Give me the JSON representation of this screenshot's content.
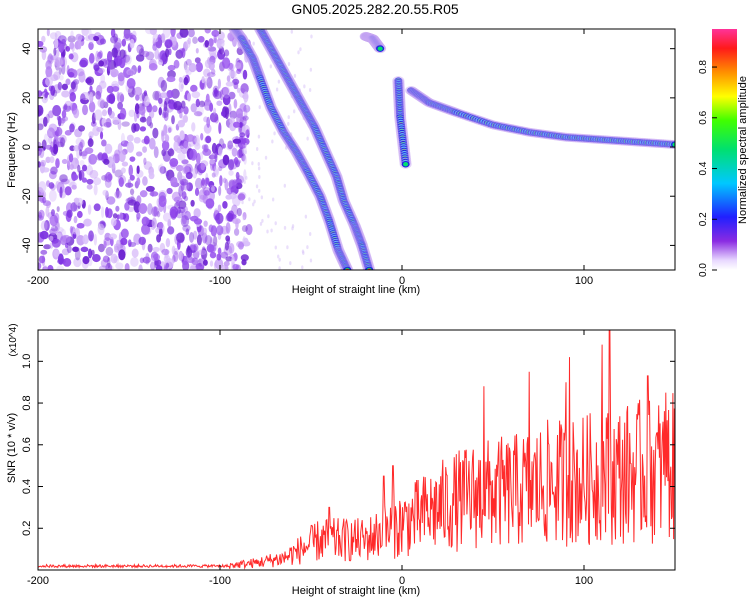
{
  "title": "GN05.2025.282.20.55.R05",
  "chart_data": [
    {
      "type": "heatmap",
      "xlabel": "Height of straight line (km)",
      "ylabel": "Frequency (Hz)",
      "xlim": [
        -200,
        150
      ],
      "ylim": [
        -50,
        48
      ],
      "xticks": [
        -200,
        -100,
        0,
        100
      ],
      "yticks": [
        -40,
        -20,
        0,
        20,
        40
      ],
      "colorbar": {
        "label": "Normalized spectral amplitude",
        "range": [
          0,
          0.95
        ],
        "ticks": [
          0.0,
          0.2,
          0.4,
          0.6,
          0.8
        ]
      },
      "tracks": [
        {
          "points": [
            [
              -92,
              48
            ],
            [
              -88,
              44
            ],
            [
              -82,
              36
            ],
            [
              -78,
              28
            ],
            [
              -72,
              16
            ],
            [
              -65,
              6
            ],
            [
              -58,
              -2
            ],
            [
              -52,
              -10
            ],
            [
              -45,
              -20
            ],
            [
              -40,
              -30
            ],
            [
              -35,
              -42
            ],
            [
              -30,
              -50
            ]
          ]
        },
        {
          "points": [
            [
              -78,
              48
            ],
            [
              -72,
              40
            ],
            [
              -66,
              32
            ],
            [
              -60,
              24
            ],
            [
              -54,
              16
            ],
            [
              -48,
              8
            ],
            [
              -42,
              -2
            ],
            [
              -36,
              -12
            ],
            [
              -32,
              -22
            ],
            [
              -26,
              -32
            ],
            [
              -22,
              -40
            ],
            [
              -18,
              -50
            ]
          ]
        },
        {
          "points": [
            [
              -20,
              45
            ],
            [
              -16,
              44
            ],
            [
              -12,
              40
            ]
          ]
        },
        {
          "points": [
            [
              -2,
              27
            ],
            [
              -1,
              12
            ],
            [
              2,
              -7
            ]
          ]
        },
        {
          "points": [
            [
              5,
              23
            ],
            [
              15,
              18
            ],
            [
              30,
              14
            ],
            [
              50,
              9
            ],
            [
              70,
              6
            ],
            [
              90,
              4
            ],
            [
              110,
              3
            ],
            [
              130,
              2
            ],
            [
              150,
              1
            ]
          ]
        }
      ],
      "noise_region_x": [
        -200,
        -90
      ]
    },
    {
      "type": "line",
      "xlabel": "Height of straight line (km)",
      "ylabel": "SNR (10 * v/v)",
      "y_multiplier": "(x10^4)",
      "xlim": [
        -200,
        150
      ],
      "ylim": [
        0,
        1.15
      ],
      "xticks": [
        -200,
        -100,
        0,
        100
      ],
      "yticks": [
        0.2,
        0.4,
        0.6,
        0.8,
        1.0
      ],
      "series": [
        {
          "color": "#ff2a2a",
          "envelope": [
            [
              -200,
              0.02
            ],
            [
              -150,
              0.025
            ],
            [
              -100,
              0.03
            ],
            [
              -80,
              0.06
            ],
            [
              -65,
              0.1
            ],
            [
              -45,
              0.25
            ],
            [
              -35,
              0.25
            ],
            [
              -20,
              0.25
            ],
            [
              -5,
              0.35
            ],
            [
              10,
              0.45
            ],
            [
              25,
              0.55
            ],
            [
              40,
              0.62
            ],
            [
              60,
              0.65
            ],
            [
              80,
              0.72
            ],
            [
              100,
              0.75
            ],
            [
              120,
              0.8
            ],
            [
              150,
              0.85
            ]
          ],
          "peaks": [
            [
              -40,
              0.3
            ],
            [
              -10,
              0.45
            ],
            [
              -5,
              0.5
            ],
            [
              45,
              0.88
            ],
            [
              70,
              0.95
            ],
            [
              90,
              0.9
            ],
            [
              92,
              1.02
            ],
            [
              110,
              1.08
            ],
            [
              114,
              1.15
            ],
            [
              135,
              0.93
            ],
            [
              145,
              0.85
            ]
          ]
        }
      ]
    }
  ],
  "colors": {
    "line": "#ff2a2a",
    "axis": "#000000"
  }
}
